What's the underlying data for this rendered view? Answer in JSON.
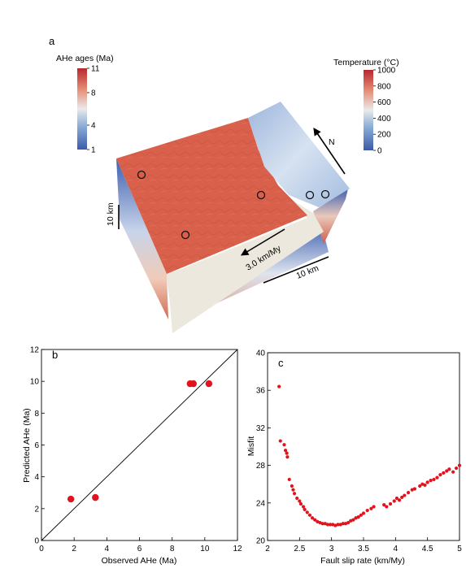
{
  "panels": {
    "a": "a",
    "b": "b",
    "c": "c"
  },
  "colorbar_ahe": {
    "title": "AHe ages (Ma)",
    "ticks": [
      "11",
      "8",
      "4",
      "1"
    ],
    "tick_values": [
      11,
      8,
      4,
      1
    ],
    "range": [
      1,
      11
    ]
  },
  "colorbar_temp": {
    "title": "Temperature (°C)",
    "ticks": [
      "1000",
      "800",
      "600",
      "400",
      "200",
      "0"
    ],
    "tick_values": [
      1000,
      800,
      600,
      400,
      200,
      0
    ],
    "range": [
      0,
      1000
    ]
  },
  "block": {
    "north_label": "N",
    "slip_label": "3.0 km/My",
    "scale_vertical": "10 km",
    "scale_horizontal": "10 km",
    "colors": {
      "surface_old": "#d9604a",
      "surface_young": "#b9cde6",
      "deep": "#d06a52",
      "shallow": "#3d60b0",
      "fault_plane": "#ece8de"
    }
  },
  "chart_data": [
    {
      "type": "scatter",
      "panel": "b",
      "xlabel": "Observed AHe (Ma)",
      "ylabel": "Predicted AHe (Ma)",
      "xlim": [
        0,
        12
      ],
      "ylim": [
        0,
        12
      ],
      "xticks": [
        0,
        2,
        4,
        6,
        8,
        10,
        12
      ],
      "yticks": [
        0,
        2,
        4,
        6,
        8,
        10,
        12
      ],
      "one_to_one_line": true,
      "points": [
        {
          "x": 1.8,
          "y": 2.6
        },
        {
          "x": 3.3,
          "y": 2.7
        },
        {
          "x": 9.1,
          "y": 9.85
        },
        {
          "x": 9.3,
          "y": 9.85
        },
        {
          "x": 10.25,
          "y": 9.85
        }
      ],
      "color": "#e0141e"
    },
    {
      "type": "scatter",
      "panel": "c",
      "xlabel": "Fault slip rate (km/My)",
      "ylabel": "Misfit",
      "xlim": [
        2,
        5
      ],
      "ylim": [
        20,
        40
      ],
      "xticks": [
        2,
        2.5,
        3,
        3.5,
        4,
        4.5,
        5
      ],
      "xtick_labels": [
        "2",
        "2.5",
        "3",
        "3.5",
        "4",
        "4.5",
        "5"
      ],
      "yticks": [
        20,
        24,
        28,
        32,
        36,
        40
      ],
      "color": "#e0141e",
      "points": [
        {
          "x": 2.18,
          "y": 36.4
        },
        {
          "x": 2.2,
          "y": 30.6
        },
        {
          "x": 2.26,
          "y": 30.2
        },
        {
          "x": 2.28,
          "y": 29.6
        },
        {
          "x": 2.3,
          "y": 29.3
        },
        {
          "x": 2.31,
          "y": 28.9
        },
        {
          "x": 2.34,
          "y": 26.5
        },
        {
          "x": 2.38,
          "y": 25.8
        },
        {
          "x": 2.4,
          "y": 25.4
        },
        {
          "x": 2.42,
          "y": 25.0
        },
        {
          "x": 2.46,
          "y": 24.5
        },
        {
          "x": 2.5,
          "y": 24.2
        },
        {
          "x": 2.52,
          "y": 23.9
        },
        {
          "x": 2.56,
          "y": 23.6
        },
        {
          "x": 2.58,
          "y": 23.3
        },
        {
          "x": 2.62,
          "y": 23.0
        },
        {
          "x": 2.66,
          "y": 22.7
        },
        {
          "x": 2.7,
          "y": 22.4
        },
        {
          "x": 2.74,
          "y": 22.2
        },
        {
          "x": 2.78,
          "y": 22.0
        },
        {
          "x": 2.82,
          "y": 21.9
        },
        {
          "x": 2.86,
          "y": 21.8
        },
        {
          "x": 2.9,
          "y": 21.8
        },
        {
          "x": 2.94,
          "y": 21.7
        },
        {
          "x": 2.98,
          "y": 21.7
        },
        {
          "x": 3.02,
          "y": 21.7
        },
        {
          "x": 3.06,
          "y": 21.6
        },
        {
          "x": 3.1,
          "y": 21.7
        },
        {
          "x": 3.14,
          "y": 21.7
        },
        {
          "x": 3.18,
          "y": 21.8
        },
        {
          "x": 3.22,
          "y": 21.8
        },
        {
          "x": 3.26,
          "y": 21.9
        },
        {
          "x": 3.3,
          "y": 22.1
        },
        {
          "x": 3.34,
          "y": 22.2
        },
        {
          "x": 3.38,
          "y": 22.4
        },
        {
          "x": 3.42,
          "y": 22.5
        },
        {
          "x": 3.46,
          "y": 22.7
        },
        {
          "x": 3.5,
          "y": 22.9
        },
        {
          "x": 3.56,
          "y": 23.2
        },
        {
          "x": 3.62,
          "y": 23.4
        },
        {
          "x": 3.66,
          "y": 23.6
        },
        {
          "x": 3.82,
          "y": 23.8
        },
        {
          "x": 3.86,
          "y": 23.6
        },
        {
          "x": 3.92,
          "y": 23.9
        },
        {
          "x": 3.98,
          "y": 24.2
        },
        {
          "x": 4.02,
          "y": 24.5
        },
        {
          "x": 4.06,
          "y": 24.3
        },
        {
          "x": 4.1,
          "y": 24.6
        },
        {
          "x": 4.14,
          "y": 24.8
        },
        {
          "x": 4.2,
          "y": 25.1
        },
        {
          "x": 4.26,
          "y": 25.4
        },
        {
          "x": 4.3,
          "y": 25.5
        },
        {
          "x": 4.38,
          "y": 25.8
        },
        {
          "x": 4.42,
          "y": 26.0
        },
        {
          "x": 4.46,
          "y": 25.9
        },
        {
          "x": 4.5,
          "y": 26.2
        },
        {
          "x": 4.55,
          "y": 26.4
        },
        {
          "x": 4.6,
          "y": 26.5
        },
        {
          "x": 4.65,
          "y": 26.7
        },
        {
          "x": 4.7,
          "y": 27.0
        },
        {
          "x": 4.75,
          "y": 27.2
        },
        {
          "x": 4.8,
          "y": 27.4
        },
        {
          "x": 4.84,
          "y": 27.6
        },
        {
          "x": 4.9,
          "y": 27.3
        },
        {
          "x": 4.95,
          "y": 27.7
        },
        {
          "x": 5.0,
          "y": 28.0
        }
      ]
    }
  ]
}
